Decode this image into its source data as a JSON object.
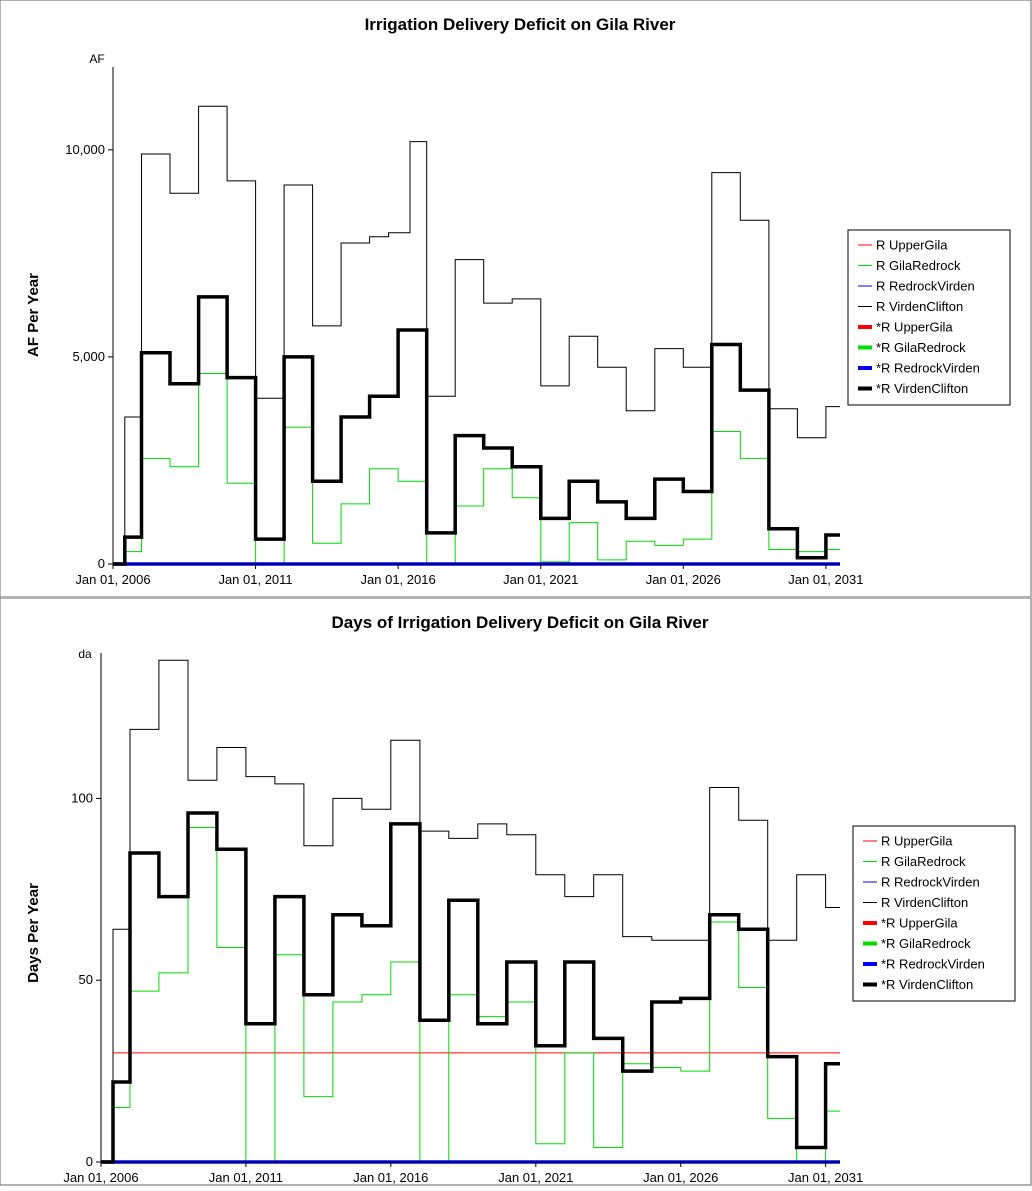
{
  "chart_data": [
    {
      "type": "line",
      "step": true,
      "title": "Irrigation Delivery Deficit on Gila River",
      "unit": "AF",
      "ylabel": "AF Per Year",
      "xlabel": "",
      "x_range": [
        "2006-01-01",
        "2031-07-01"
      ],
      "ylim": [
        0,
        12000
      ],
      "y_ticks": [
        0,
        5000,
        10000
      ],
      "y_tick_labels": [
        "0",
        "5,000",
        "10,000"
      ],
      "x_ticks": [
        "2006-01-01",
        "2011-01-01",
        "2016-01-01",
        "2021-01-01",
        "2026-01-01",
        "2031-01-01"
      ],
      "x_tick_labels": [
        "Jan 01, 2006",
        "Jan 01, 2011",
        "Jan 01, 2016",
        "Jan 01, 2021",
        "Jan 01, 2026",
        "Jan 01, 2031"
      ],
      "legend_position": "right",
      "legend": [
        {
          "label": "R UpperGila",
          "color": "#ff0000",
          "weight": "thin"
        },
        {
          "label": "R GilaRedrock",
          "color": "#00dd00",
          "weight": "thin"
        },
        {
          "label": "R RedrockVirden",
          "color": "#0000ff",
          "weight": "thin"
        },
        {
          "label": "R VirdenClifton",
          "color": "#000000",
          "weight": "thin"
        },
        {
          "label": "*R UpperGila",
          "color": "#ff0000",
          "weight": "thick"
        },
        {
          "label": "*R GilaRedrock",
          "color": "#00dd00",
          "weight": "thick"
        },
        {
          "label": "*R RedrockVirden",
          "color": "#0000ff",
          "weight": "thick"
        },
        {
          "label": "*R VirdenClifton",
          "color": "#000000",
          "weight": "thick"
        }
      ],
      "series": [
        {
          "name": "R GilaRedrock",
          "color": "#00dd00",
          "width": 1,
          "x": [
            "2006-01-01",
            "2006-06-01",
            "2007-01-01",
            "2008-01-01",
            "2009-01-01",
            "2010-01-01",
            "2011-01-01",
            "2012-01-01",
            "2013-01-01",
            "2014-01-01",
            "2015-01-01",
            "2016-01-01",
            "2017-01-01",
            "2018-01-01",
            "2019-01-01",
            "2020-01-01",
            "2021-01-01",
            "2022-01-01",
            "2023-01-01",
            "2024-01-01",
            "2025-01-01",
            "2026-01-01",
            "2027-01-01",
            "2028-01-01",
            "2029-01-01",
            "2030-01-01",
            "2031-01-01",
            "2031-07-01"
          ],
          "y": [
            0,
            300,
            2550,
            2350,
            4600,
            1950,
            0,
            3300,
            500,
            1450,
            2300,
            2000,
            0,
            1400,
            2300,
            1600,
            50,
            1000,
            100,
            550,
            450,
            600,
            3200,
            2550,
            350,
            300,
            350,
            350
          ]
        },
        {
          "name": "R VirdenClifton",
          "color": "#000000",
          "width": 1,
          "x": [
            "2006-01-01",
            "2006-06-01",
            "2007-01-01",
            "2008-01-01",
            "2009-01-01",
            "2010-01-01",
            "2011-01-01",
            "2012-01-01",
            "2013-01-01",
            "2014-01-01",
            "2015-01-01",
            "2015-09-01",
            "2016-06-01",
            "2017-01-01",
            "2018-01-01",
            "2019-01-01",
            "2020-01-01",
            "2021-01-01",
            "2022-01-01",
            "2023-01-01",
            "2024-01-01",
            "2025-01-01",
            "2026-01-01",
            "2027-01-01",
            "2028-01-01",
            "2029-01-01",
            "2030-01-01",
            "2031-01-01",
            "2031-07-01"
          ],
          "y": [
            0,
            3550,
            9900,
            8950,
            11050,
            9250,
            4000,
            9150,
            5750,
            7750,
            7900,
            8000,
            10200,
            4050,
            7350,
            6300,
            6400,
            4300,
            5500,
            4750,
            3700,
            5200,
            4750,
            9450,
            8300,
            3750,
            3050,
            3800,
            3800
          ]
        },
        {
          "name": "R RedrockVirden",
          "color": "#0000ff",
          "width": 3.5,
          "x": [
            "2006-01-01",
            "2031-07-01"
          ],
          "y": [
            0,
            0
          ]
        },
        {
          "name": "*R VirdenClifton",
          "color": "#000000",
          "width": 3.5,
          "x": [
            "2006-01-01",
            "2006-06-01",
            "2007-01-01",
            "2008-01-01",
            "2009-01-01",
            "2010-01-01",
            "2011-01-01",
            "2012-01-01",
            "2013-01-01",
            "2014-01-01",
            "2015-01-01",
            "2016-01-01",
            "2017-01-01",
            "2018-01-01",
            "2019-01-01",
            "2020-01-01",
            "2021-01-01",
            "2022-01-01",
            "2023-01-01",
            "2024-01-01",
            "2025-01-01",
            "2026-01-01",
            "2027-01-01",
            "2028-01-01",
            "2029-01-01",
            "2030-01-01",
            "2031-01-01",
            "2031-07-01"
          ],
          "y": [
            0,
            650,
            5100,
            4350,
            6450,
            4500,
            600,
            5000,
            2000,
            3550,
            4050,
            5650,
            750,
            3100,
            2800,
            2350,
            1100,
            2000,
            1500,
            1100,
            2050,
            1750,
            5300,
            4200,
            850,
            150,
            700,
            700
          ]
        }
      ]
    },
    {
      "type": "line",
      "step": true,
      "title": "Days of Irrigation Delivery Deficit on Gila River",
      "unit": "da",
      "ylabel": "Days Per Year",
      "xlabel": "",
      "x_range": [
        "2006-01-01",
        "2031-07-01"
      ],
      "ylim": [
        0,
        140
      ],
      "y_ticks": [
        0,
        50,
        100
      ],
      "y_tick_labels": [
        "0",
        "50",
        "100"
      ],
      "x_ticks": [
        "2006-01-01",
        "2011-01-01",
        "2016-01-01",
        "2021-01-01",
        "2026-01-01",
        "2031-01-01"
      ],
      "x_tick_labels": [
        "Jan 01, 2006",
        "Jan 01, 2011",
        "Jan 01, 2016",
        "Jan 01, 2021",
        "Jan 01, 2026",
        "Jan 01, 2031"
      ],
      "legend_position": "right",
      "legend": [
        {
          "label": "R UpperGila",
          "color": "#ff0000",
          "weight": "thin"
        },
        {
          "label": "R GilaRedrock",
          "color": "#00dd00",
          "weight": "thin"
        },
        {
          "label": "R RedrockVirden",
          "color": "#0000ff",
          "weight": "thin"
        },
        {
          "label": "R VirdenClifton",
          "color": "#000000",
          "weight": "thin"
        },
        {
          "label": "*R UpperGila",
          "color": "#ff0000",
          "weight": "thick"
        },
        {
          "label": "*R GilaRedrock",
          "color": "#00dd00",
          "weight": "thick"
        },
        {
          "label": "*R RedrockVirden",
          "color": "#0000ff",
          "weight": "thick"
        },
        {
          "label": "*R VirdenClifton",
          "color": "#000000",
          "weight": "thick"
        }
      ],
      "series": [
        {
          "name": "R UpperGila",
          "color": "#ff0000",
          "width": 1,
          "x": [
            "2006-06-01",
            "2031-07-01"
          ],
          "y": [
            30,
            30
          ]
        },
        {
          "name": "R GilaRedrock",
          "color": "#00dd00",
          "width": 1,
          "x": [
            "2006-01-01",
            "2006-06-01",
            "2007-01-01",
            "2008-01-01",
            "2009-01-01",
            "2010-01-01",
            "2011-01-01",
            "2012-01-01",
            "2013-01-01",
            "2014-01-01",
            "2015-01-01",
            "2016-01-01",
            "2017-01-01",
            "2018-01-01",
            "2019-01-01",
            "2020-01-01",
            "2021-01-01",
            "2022-01-01",
            "2023-01-01",
            "2024-01-01",
            "2025-01-01",
            "2026-01-01",
            "2027-01-01",
            "2028-01-01",
            "2029-01-01",
            "2030-01-01",
            "2031-01-01",
            "2031-07-01"
          ],
          "y": [
            0,
            15,
            47,
            52,
            92,
            59,
            0,
            57,
            18,
            44,
            46,
            55,
            0,
            46,
            40,
            44,
            5,
            30,
            4,
            27,
            26,
            25,
            66,
            48,
            12,
            0,
            14,
            14
          ]
        },
        {
          "name": "R VirdenClifton",
          "color": "#000000",
          "width": 1,
          "x": [
            "2006-01-01",
            "2006-06-01",
            "2007-01-01",
            "2008-01-01",
            "2009-01-01",
            "2010-01-01",
            "2011-01-01",
            "2012-01-01",
            "2013-01-01",
            "2014-01-01",
            "2015-01-01",
            "2016-01-01",
            "2017-01-01",
            "2018-01-01",
            "2019-01-01",
            "2020-01-01",
            "2021-01-01",
            "2022-01-01",
            "2023-01-01",
            "2024-01-01",
            "2025-01-01",
            "2026-01-01",
            "2027-01-01",
            "2028-01-01",
            "2029-01-01",
            "2030-01-01",
            "2031-01-01",
            "2031-07-01"
          ],
          "y": [
            0,
            64,
            119,
            138,
            105,
            114,
            106,
            104,
            87,
            100,
            97,
            116,
            91,
            89,
            93,
            90,
            79,
            73,
            79,
            62,
            61,
            61,
            103,
            94,
            61,
            79,
            70,
            70
          ]
        },
        {
          "name": "R RedrockVirden",
          "color": "#0000ff",
          "width": 3.5,
          "x": [
            "2006-01-01",
            "2031-07-01"
          ],
          "y": [
            0,
            0
          ]
        },
        {
          "name": "*R VirdenClifton",
          "color": "#000000",
          "width": 3.5,
          "x": [
            "2006-01-01",
            "2006-06-01",
            "2007-01-01",
            "2008-01-01",
            "2009-01-01",
            "2010-01-01",
            "2011-01-01",
            "2012-01-01",
            "2013-01-01",
            "2014-01-01",
            "2015-01-01",
            "2016-01-01",
            "2017-01-01",
            "2018-01-01",
            "2019-01-01",
            "2020-01-01",
            "2021-01-01",
            "2022-01-01",
            "2023-01-01",
            "2024-01-01",
            "2025-01-01",
            "2026-01-01",
            "2027-01-01",
            "2028-01-01",
            "2029-01-01",
            "2030-01-01",
            "2031-01-01",
            "2031-07-01"
          ],
          "y": [
            0,
            22,
            85,
            73,
            96,
            86,
            38,
            73,
            46,
            68,
            65,
            93,
            39,
            72,
            38,
            55,
            32,
            55,
            34,
            25,
            44,
            45,
            68,
            64,
            29,
            4,
            27,
            27
          ]
        }
      ]
    }
  ]
}
